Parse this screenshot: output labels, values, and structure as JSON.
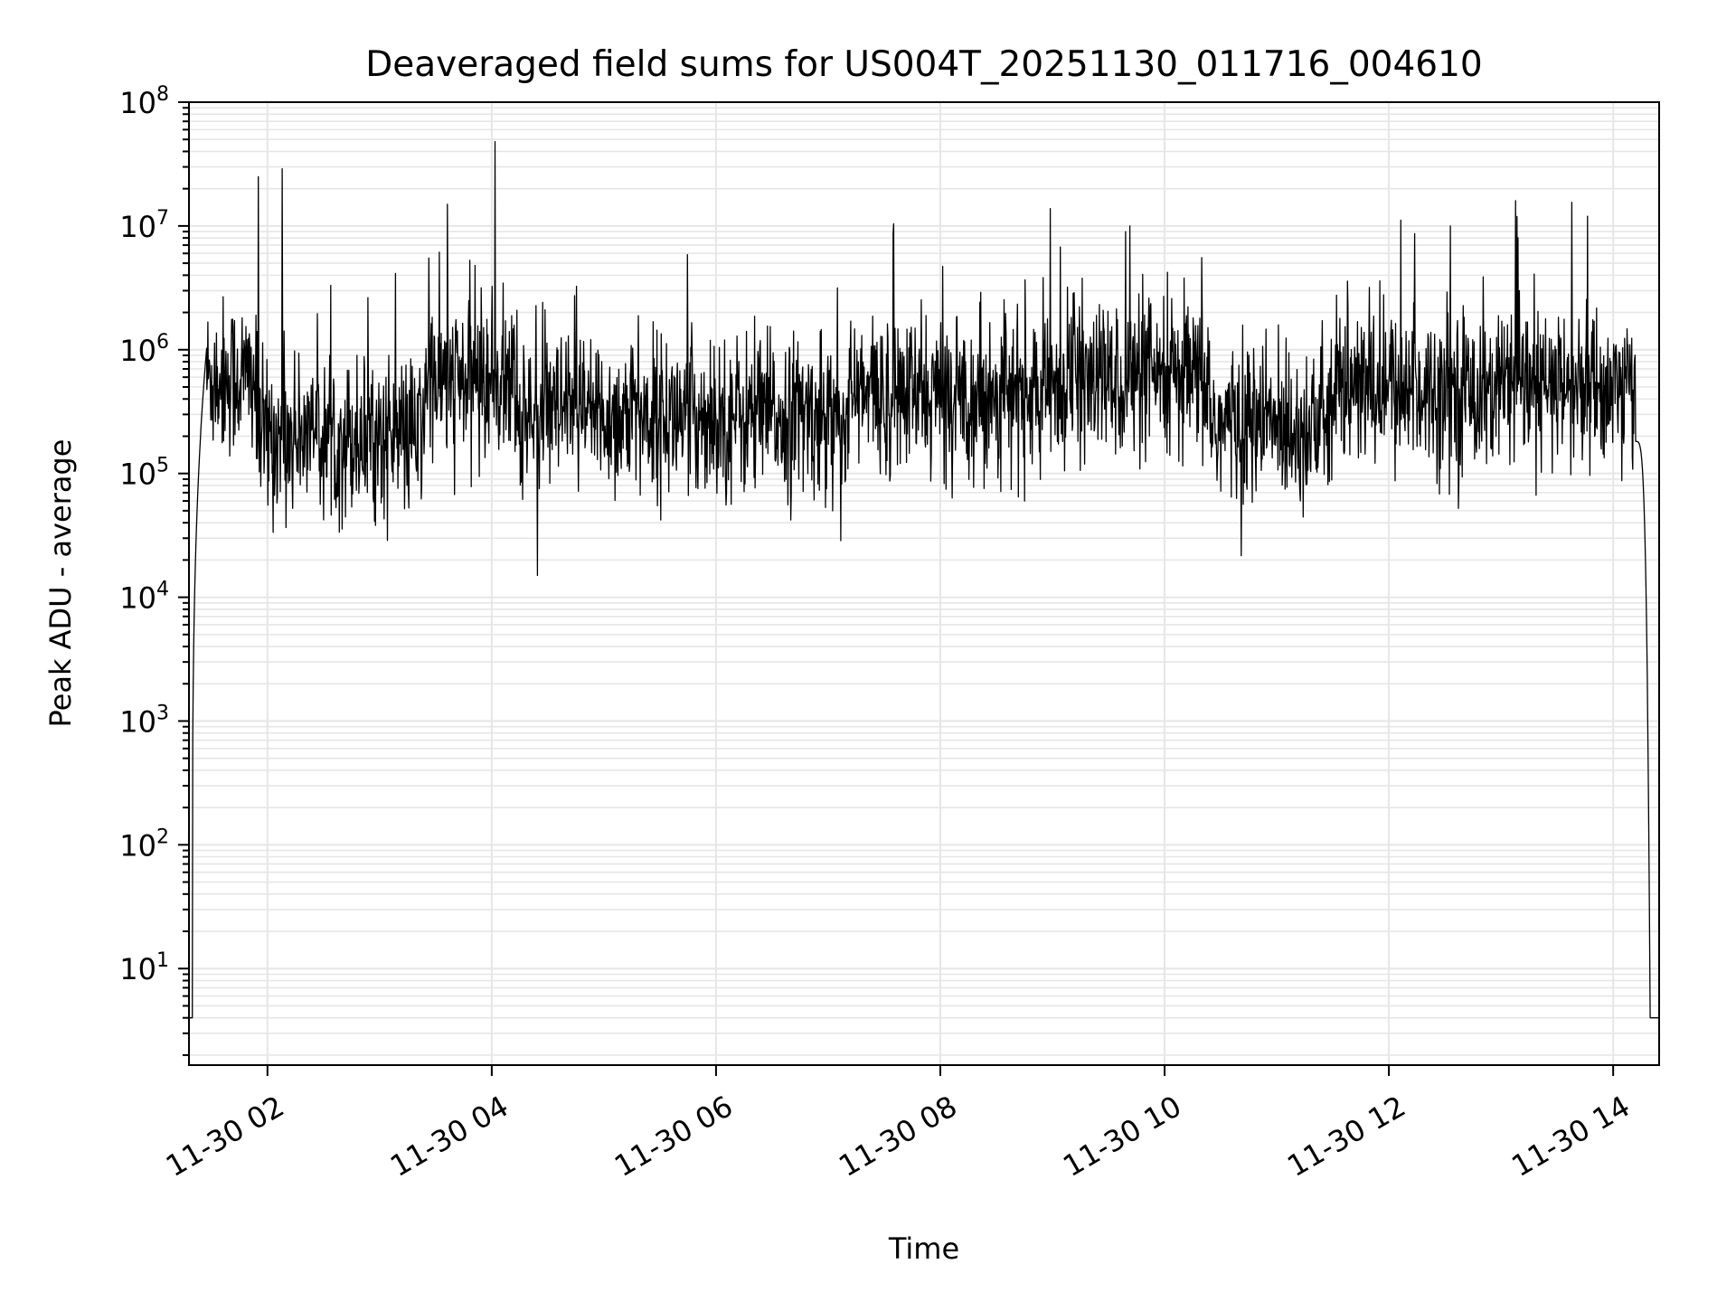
{
  "chart_data": {
    "type": "line",
    "title": "Deaveraged field sums for US004T_20251130_011716_004610",
    "xlabel": "Time",
    "ylabel": "Peak ADU - average",
    "yscale": "log",
    "ylim": [
      1.66,
      100000000
    ],
    "xlim_hours": [
      1.3,
      14.41
    ],
    "grid": "major and minor, light gray",
    "line_color": "#000000",
    "grid_color": "#e6e6e6",
    "x_ticks": [
      {
        "hour": 2,
        "label": "11-30 02"
      },
      {
        "hour": 4,
        "label": "11-30 04"
      },
      {
        "hour": 6,
        "label": "11-30 06"
      },
      {
        "hour": 8,
        "label": "11-30 08"
      },
      {
        "hour": 10,
        "label": "11-30 10"
      },
      {
        "hour": 12,
        "label": "11-30 12"
      },
      {
        "hour": 14,
        "label": "11-30 14"
      }
    ],
    "y_ticks": [
      {
        "exp": 1,
        "base": "10",
        "sup": "1"
      },
      {
        "exp": 2,
        "base": "10",
        "sup": "2"
      },
      {
        "exp": 3,
        "base": "10",
        "sup": "3"
      },
      {
        "exp": 4,
        "base": "10",
        "sup": "4"
      },
      {
        "exp": 5,
        "base": "10",
        "sup": "5"
      },
      {
        "exp": 6,
        "base": "10",
        "sup": "6"
      },
      {
        "exp": 7,
        "base": "10",
        "sup": "7"
      },
      {
        "exp": 8,
        "base": "10",
        "sup": "8"
      }
    ],
    "series": {
      "floor_value": 4,
      "floor_start": [
        1.3,
        1.33
      ],
      "ramp_up": [
        1.33,
        1.46
      ],
      "ramp_down": [
        14.2,
        14.33
      ],
      "floor_end": [
        14.33,
        14.41
      ],
      "segments": [
        {
          "from": 1.46,
          "to": 1.9,
          "median": 600000
        },
        {
          "from": 1.9,
          "to": 3.4,
          "median": 200000
        },
        {
          "from": 3.4,
          "to": 4.2,
          "median": 550000
        },
        {
          "from": 4.2,
          "to": 7.2,
          "median": 290000
        },
        {
          "from": 7.2,
          "to": 9.0,
          "median": 430000
        },
        {
          "from": 9.0,
          "to": 10.4,
          "median": 550000
        },
        {
          "from": 10.4,
          "to": 11.5,
          "median": 250000
        },
        {
          "from": 11.5,
          "to": 14.2,
          "median": 480000
        }
      ],
      "noise_log10_sigma": 0.32,
      "spikes": [
        {
          "hour": 1.92,
          "value": 25000000
        },
        {
          "hour": 2.13,
          "value": 29000000
        },
        {
          "hour": 3.44,
          "value": 5500000
        },
        {
          "hour": 3.85,
          "value": 4800000
        },
        {
          "hour": 4.03,
          "value": 48000000
        },
        {
          "hour": 7.58,
          "value": 8800000
        },
        {
          "hour": 9.65,
          "value": 9000000
        },
        {
          "hour": 9.69,
          "value": 10000000
        },
        {
          "hour": 12.55,
          "value": 10000000
        },
        {
          "hour": 13.13,
          "value": 16000000
        },
        {
          "hour": 13.63,
          "value": 15500000
        },
        {
          "hour": 13.77,
          "value": 12000000
        }
      ]
    }
  }
}
